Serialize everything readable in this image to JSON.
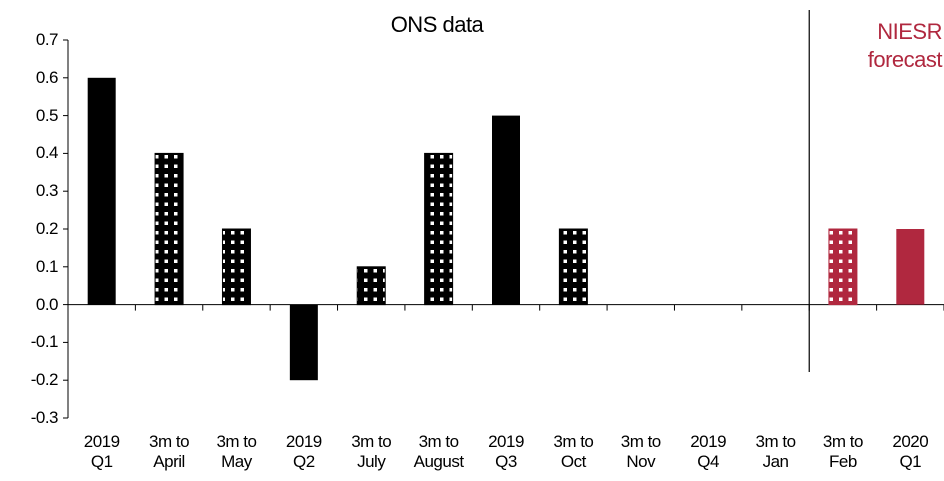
{
  "chart_data": {
    "type": "bar",
    "title": "ONS data",
    "annotation": "NIESR forecast",
    "categories": [
      "2019 Q1",
      "3m to April",
      "3m to May",
      "2019 Q2",
      "3m to July",
      "3m to August",
      "2019 Q3",
      "3m to Oct",
      "3m to Nov",
      "2019 Q4",
      "3m to Jan",
      "3m to Feb",
      "2020 Q1"
    ],
    "values": [
      0.6,
      0.4,
      0.2,
      -0.2,
      0.1,
      0.4,
      0.5,
      0.2,
      null,
      null,
      null,
      0.2,
      0.2
    ],
    "colors": [
      "#000000",
      "#000000",
      "#000000",
      "#000000",
      "#000000",
      "#000000",
      "#000000",
      "#000000",
      null,
      null,
      null,
      "#b0283f",
      "#b0283f"
    ],
    "patterned": [
      false,
      true,
      true,
      false,
      true,
      true,
      false,
      true,
      null,
      null,
      null,
      true,
      false
    ],
    "annotation_color": "#b0283f",
    "ylim": [
      -0.3,
      0.7
    ],
    "yticks": [
      -0.3,
      -0.2,
      -0.1,
      {
        "value": 0,
        "label": "0.0"
      },
      0.1,
      0.2,
      0.3,
      0.4,
      0.5,
      0.6,
      0.7
    ],
    "grid": false
  }
}
